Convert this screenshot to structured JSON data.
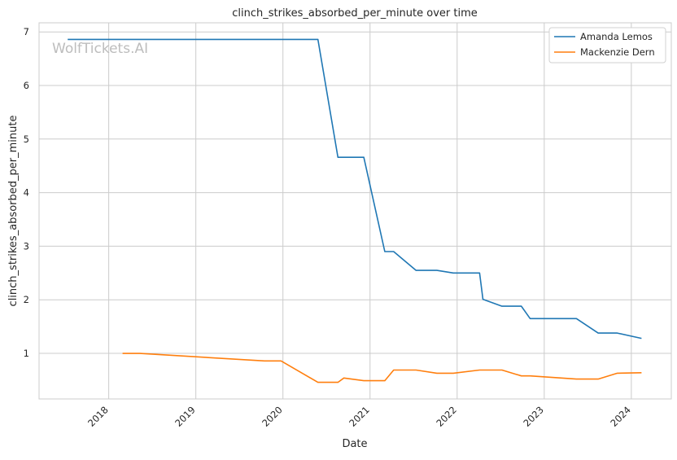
{
  "chart_data": {
    "type": "line",
    "title": "clinch_strikes_absorbed_per_minute over time",
    "xlabel": "Date",
    "ylabel": "clinch_strikes_absorbed_per_minute",
    "xlim": [
      "2017-03-15",
      "2024-06-17"
    ],
    "ylim": [
      0.15,
      7.17
    ],
    "x_ticks": [
      "2018",
      "2019",
      "2020",
      "2021",
      "2022",
      "2023",
      "2024"
    ],
    "y_ticks": [
      1,
      2,
      3,
      4,
      5,
      6,
      7
    ],
    "grid": true,
    "legend_position": "top-right",
    "watermark": "WolfTickets.AI",
    "series": [
      {
        "name": "Amanda Lemos",
        "color": "#1f77b4",
        "x": [
          "2017-07-13",
          "2020-05-27",
          "2020-08-19",
          "2020-12-06",
          "2021-03-04",
          "2021-04-10",
          "2021-07-13",
          "2021-10-08",
          "2021-12-16",
          "2022-04-05",
          "2022-04-19",
          "2022-07-08",
          "2022-09-27",
          "2022-11-03",
          "2023-05-16",
          "2023-08-15",
          "2023-11-03",
          "2024-02-13"
        ],
        "y": [
          6.86,
          6.86,
          4.66,
          4.66,
          2.9,
          2.9,
          2.55,
          2.55,
          2.5,
          2.5,
          2.01,
          1.88,
          1.88,
          1.65,
          1.65,
          1.38,
          1.38,
          1.28
        ]
      },
      {
        "name": "Mackenzie Dern",
        "color": "#ff7f0e",
        "x": [
          "2018-02-28",
          "2018-05-12",
          "2019-10-16",
          "2019-12-24",
          "2020-05-27",
          "2020-08-19",
          "2020-09-13",
          "2020-12-06",
          "2021-03-04",
          "2021-04-10",
          "2021-07-13",
          "2021-10-08",
          "2021-12-16",
          "2022-04-05",
          "2022-07-08",
          "2022-09-27",
          "2022-11-03",
          "2023-05-16",
          "2023-08-15",
          "2023-11-03",
          "2024-02-13"
        ],
        "y": [
          1.0,
          1.0,
          0.86,
          0.86,
          0.46,
          0.46,
          0.54,
          0.49,
          0.49,
          0.69,
          0.69,
          0.63,
          0.63,
          0.69,
          0.69,
          0.58,
          0.58,
          0.52,
          0.52,
          0.63,
          0.64
        ]
      }
    ]
  }
}
